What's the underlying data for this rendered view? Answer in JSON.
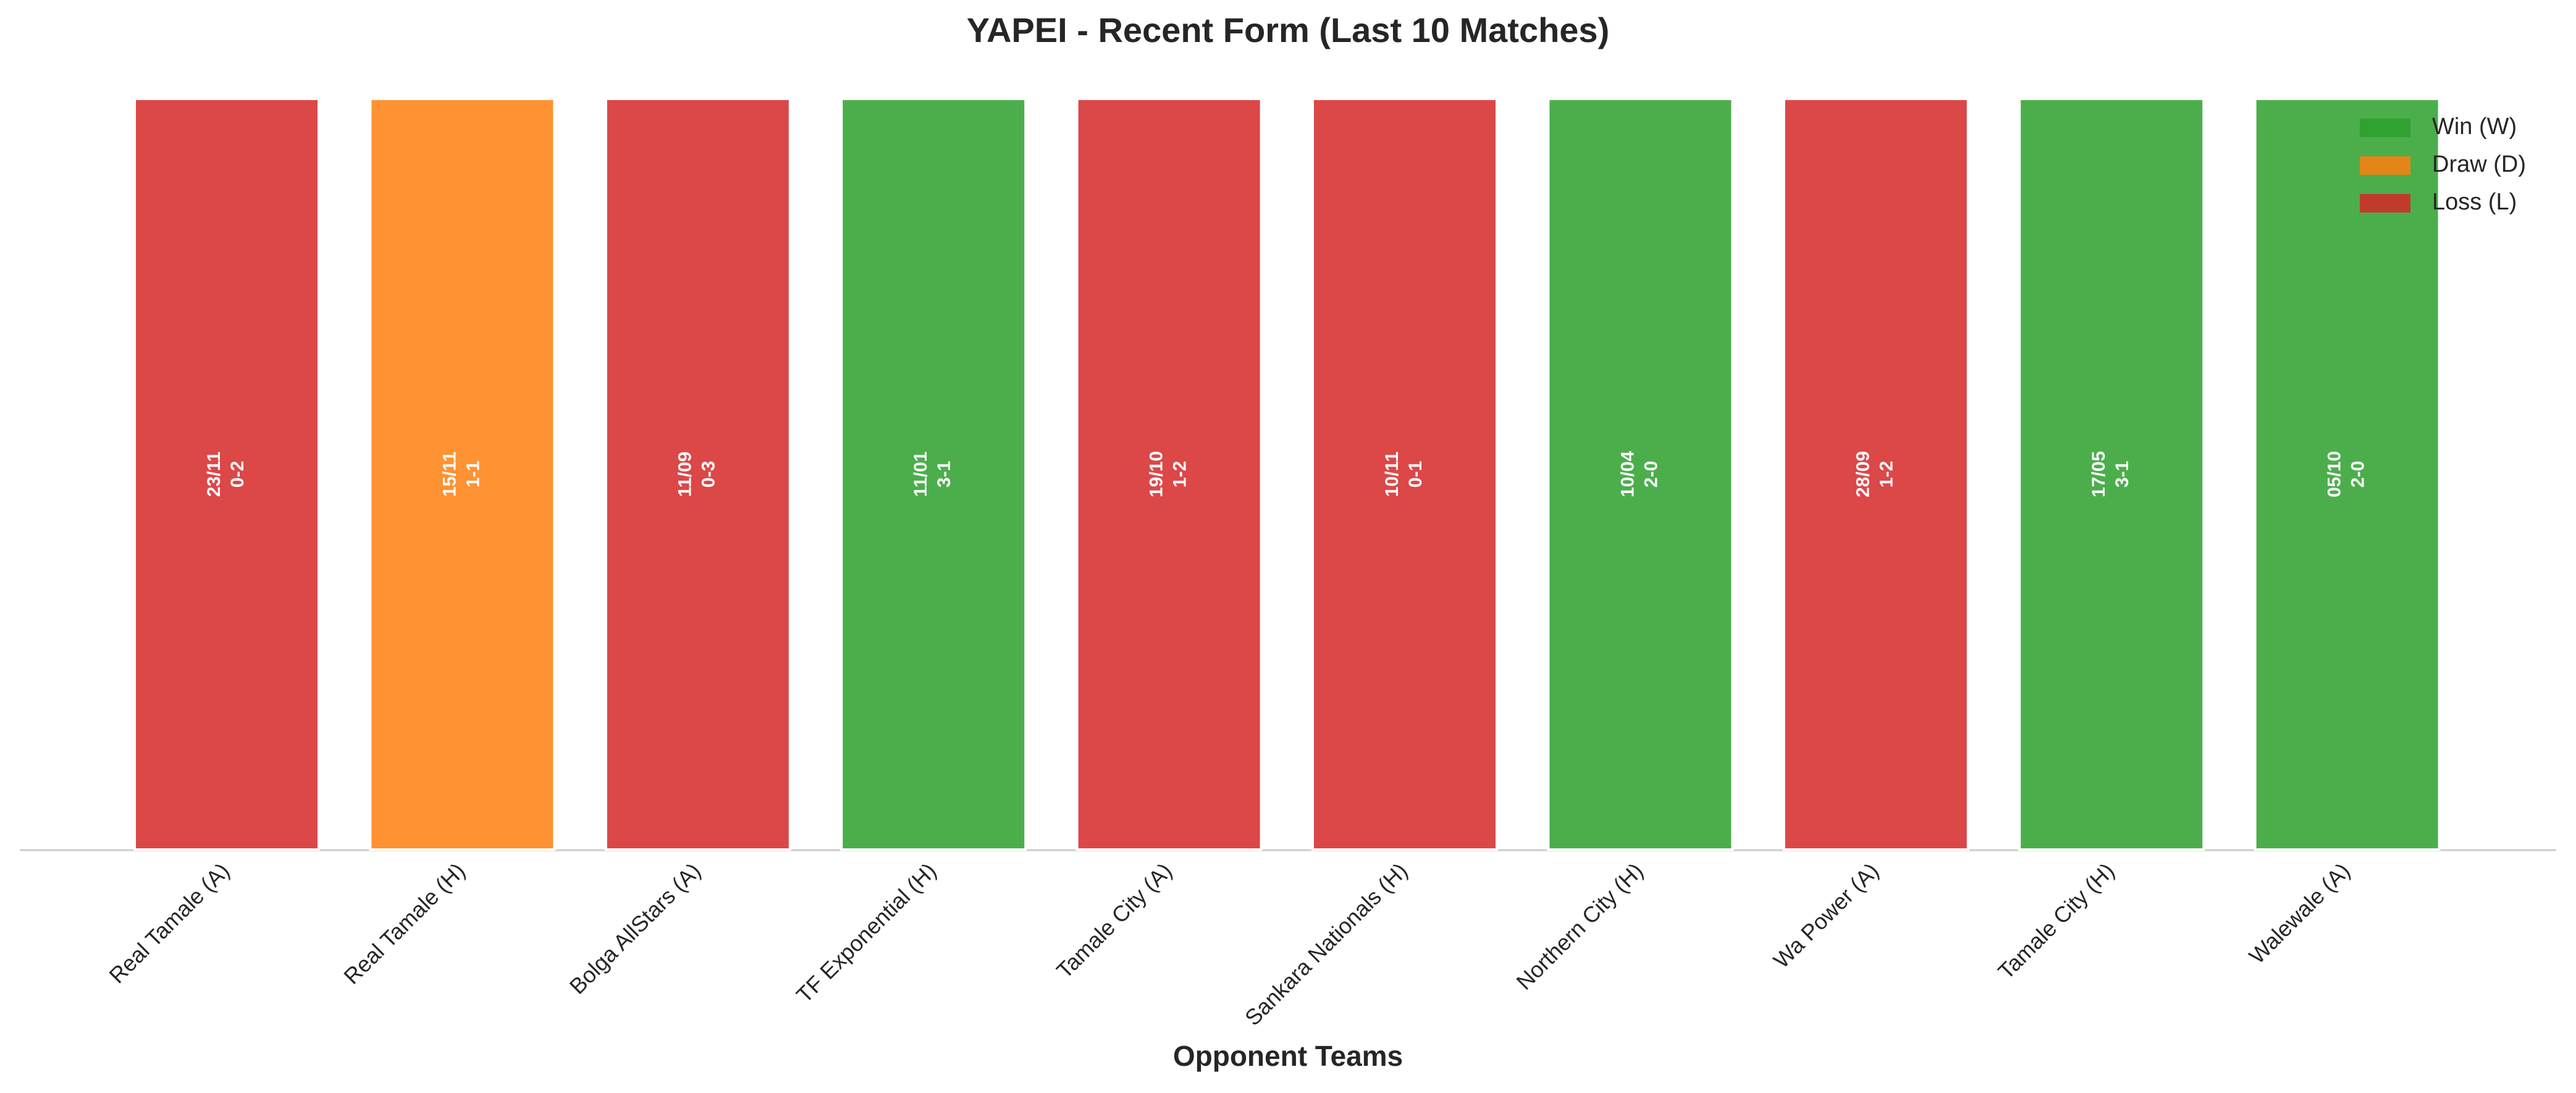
{
  "chart_data": {
    "type": "bar",
    "title": "YAPEI - Recent Form (Last 10 Matches)",
    "x_label": "Opponent Teams",
    "categories": [
      "Real Tamale (A)",
      "Real Tamale (H)",
      "Bolga AllStars (A)",
      "TF Exponential (H)",
      "Tamale City (A)",
      "Sankara Nationals (H)",
      "Northern City (H)",
      "Wa Power (A)",
      "Tamale City (H)",
      "Walewale (A)"
    ],
    "values": [
      1,
      1,
      1,
      1,
      1,
      1,
      1,
      1,
      1,
      1
    ],
    "dates": [
      "23/11",
      "15/11",
      "11/09",
      "11/01",
      "19/10",
      "10/11",
      "10/04",
      "28/09",
      "17/05",
      "05/10"
    ],
    "scores": [
      "0-2",
      "1-1",
      "0-3",
      "3-1",
      "1-2",
      "0-1",
      "2-0",
      "1-2",
      "3-1",
      "2-0"
    ],
    "colors": [
      "#d62728",
      "#ff7f0e",
      "#d62728",
      "#2ca02c",
      "#d62728",
      "#d62728",
      "#2ca02c",
      "#d62728",
      "#2ca02c",
      "#2ca02c"
    ],
    "ylim": [
      0,
      1
    ],
    "legend": [
      {
        "name": "Win (W)",
        "color": "#2ca02c"
      },
      {
        "name": "Draw (D)",
        "color": "#ff7f0e"
      },
      {
        "name": "Loss (L)",
        "color": "#d62728"
      }
    ],
    "legend_position": "upper right"
  }
}
